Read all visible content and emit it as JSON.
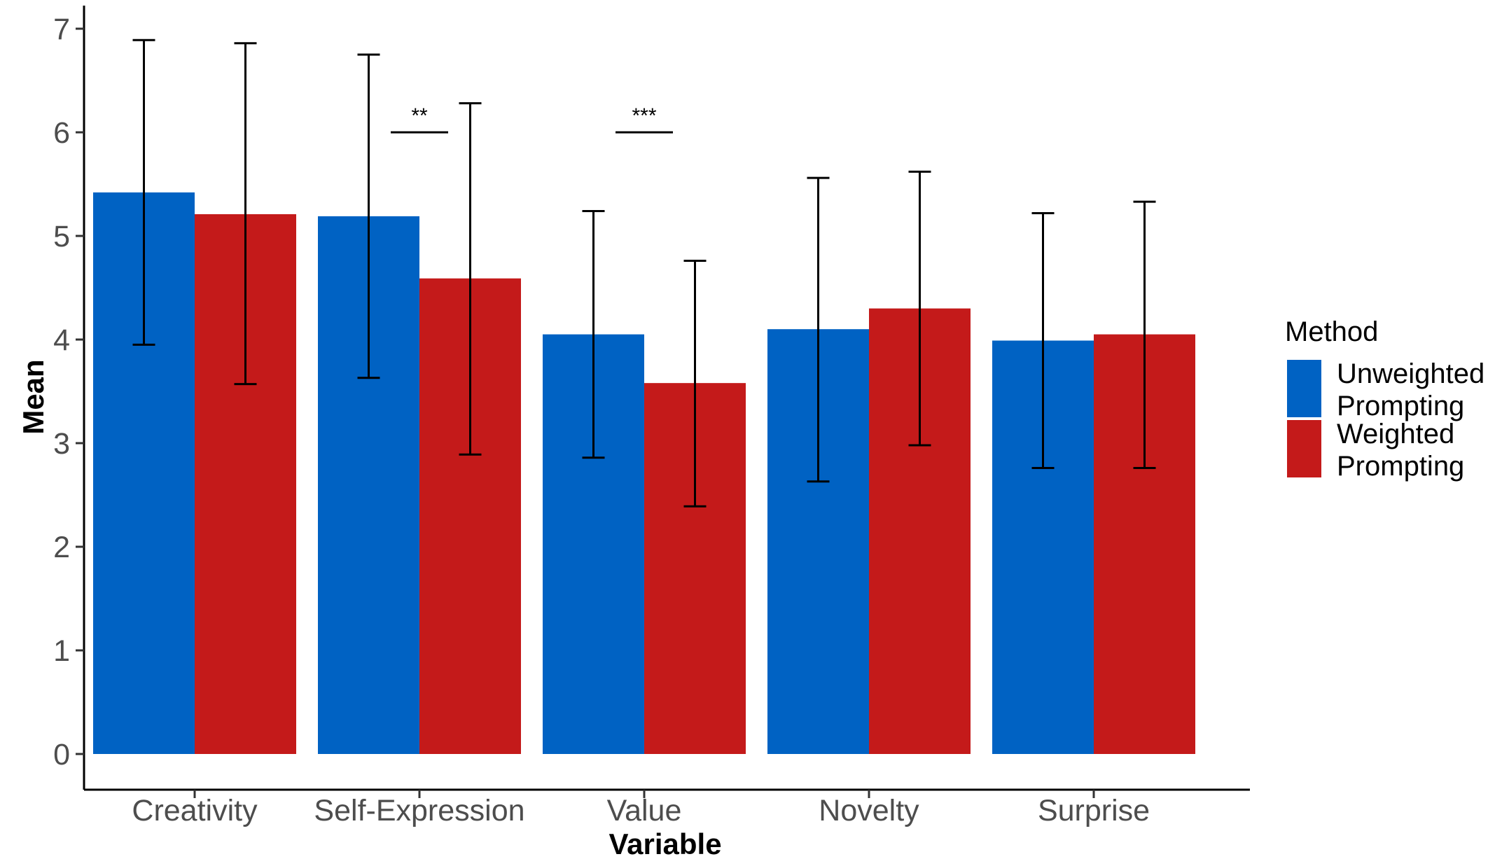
{
  "chart_data": {
    "type": "bar",
    "title": "",
    "xlabel": "Variable",
    "ylabel": "Mean",
    "ylim": [
      0,
      7
    ],
    "yticks": [
      "0",
      "1",
      "2",
      "3",
      "4",
      "5",
      "6",
      "7"
    ],
    "categories": [
      "Creativity",
      "Self-Expression",
      "Value",
      "Novelty",
      "Surprise"
    ],
    "series": [
      {
        "name": "Unweighted Prompting",
        "name_lines": [
          "Unweighted",
          "Prompting"
        ],
        "color": "#0062c3",
        "values": [
          5.42,
          5.19,
          4.05,
          4.1,
          3.99
        ],
        "error_low": [
          3.95,
          3.63,
          2.86,
          2.63,
          2.76
        ],
        "error_high": [
          6.89,
          6.75,
          5.24,
          5.56,
          5.22
        ]
      },
      {
        "name": "Weighted Prompting",
        "name_lines": [
          "Weighted",
          "Prompting"
        ],
        "color": "#c41a1a",
        "values": [
          5.21,
          4.59,
          3.58,
          4.3,
          4.05
        ],
        "error_low": [
          3.57,
          2.89,
          2.39,
          2.98,
          2.76
        ],
        "error_high": [
          6.86,
          6.28,
          4.76,
          5.62,
          5.33
        ]
      }
    ],
    "significance": [
      {
        "category": "Self-Expression",
        "label": "**",
        "y": 6.0
      },
      {
        "category": "Value",
        "label": "***",
        "y": 6.0
      }
    ],
    "legend": {
      "title": "Method",
      "position": "right"
    },
    "grid": false
  }
}
